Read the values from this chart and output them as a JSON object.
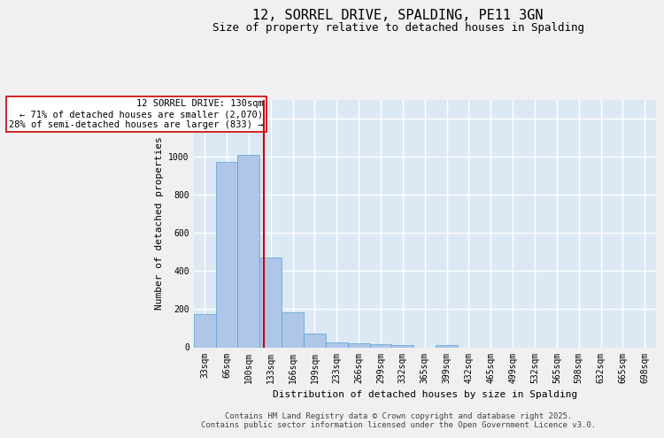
{
  "title": "12, SORREL DRIVE, SPALDING, PE11 3GN",
  "subtitle": "Size of property relative to detached houses in Spalding",
  "xlabel": "Distribution of detached houses by size in Spalding",
  "ylabel": "Number of detached properties",
  "categories": [
    "33sqm",
    "66sqm",
    "100sqm",
    "133sqm",
    "166sqm",
    "199sqm",
    "233sqm",
    "266sqm",
    "299sqm",
    "332sqm",
    "365sqm",
    "399sqm",
    "432sqm",
    "465sqm",
    "499sqm",
    "532sqm",
    "565sqm",
    "598sqm",
    "632sqm",
    "665sqm",
    "698sqm"
  ],
  "values": [
    175,
    975,
    1010,
    470,
    185,
    72,
    27,
    22,
    17,
    10,
    0,
    12,
    0,
    0,
    0,
    0,
    0,
    0,
    0,
    0,
    0
  ],
  "bar_color": "#aec6e8",
  "bar_edge_color": "#5a9fd4",
  "background_color": "#dce9f5",
  "grid_color": "#ffffff",
  "red_line_x": 2.67,
  "annotation_text": "12 SORREL DRIVE: 130sqm\n← 71% of detached houses are smaller (2,070)\n28% of semi-detached houses are larger (833) →",
  "annotation_box_color": "#ffffff",
  "annotation_box_edge_color": "#cc0000",
  "ylim": [
    0,
    1300
  ],
  "yticks": [
    0,
    200,
    400,
    600,
    800,
    1000,
    1200
  ],
  "footer_text": "Contains HM Land Registry data © Crown copyright and database right 2025.\nContains public sector information licensed under the Open Government Licence v3.0.",
  "title_fontsize": 11,
  "subtitle_fontsize": 9,
  "axis_label_fontsize": 8,
  "tick_fontsize": 7,
  "annotation_fontsize": 7.5,
  "footer_fontsize": 6.5
}
